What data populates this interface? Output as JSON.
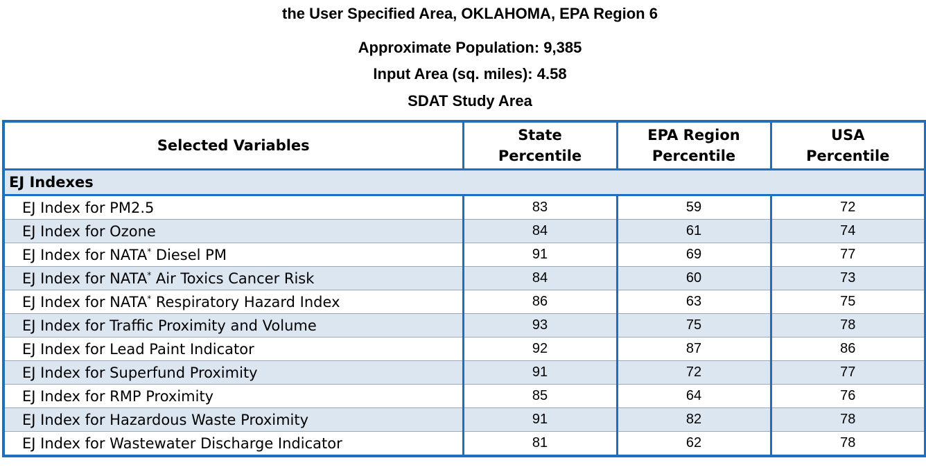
{
  "header": {
    "area_line": "the User Specified Area, OKLAHOMA, EPA Region 6",
    "population_line": "Approximate Population: 9,385",
    "input_area_line": "Input Area (sq. miles): 4.58",
    "study_area_line": "SDAT Study Area"
  },
  "table": {
    "columns": {
      "selected_variables": "Selected Variables",
      "state_line1": "State",
      "state_line2": "Percentile",
      "region_line1": "EPA Region",
      "region_line2": "Percentile",
      "usa_line1": "USA",
      "usa_line2": "Percentile"
    },
    "section_label": "EJ Indexes",
    "nata_superscript": "*",
    "rows": [
      {
        "prefix": "EJ Index for PM2.5",
        "suffix": "",
        "state": "83",
        "region": "59",
        "usa": "72"
      },
      {
        "prefix": "EJ Index for Ozone",
        "suffix": "",
        "state": "84",
        "region": "61",
        "usa": "74"
      },
      {
        "prefix": "EJ Index for NATA",
        "suffix": " Diesel PM",
        "state": "91",
        "region": "69",
        "usa": "77"
      },
      {
        "prefix": "EJ Index for NATA",
        "suffix": " Air Toxics Cancer Risk",
        "state": "84",
        "region": "60",
        "usa": "73"
      },
      {
        "prefix": "EJ Index for NATA",
        "suffix": " Respiratory Hazard Index",
        "state": "86",
        "region": "63",
        "usa": "75"
      },
      {
        "prefix": "EJ Index for Traffic Proximity and Volume",
        "suffix": "",
        "state": "93",
        "region": "75",
        "usa": "78"
      },
      {
        "prefix": "EJ Index for Lead Paint Indicator",
        "suffix": "",
        "state": "92",
        "region": "87",
        "usa": "86"
      },
      {
        "prefix": "EJ Index for Superfund Proximity",
        "suffix": "",
        "state": "91",
        "region": "72",
        "usa": "77"
      },
      {
        "prefix": "EJ Index for RMP Proximity",
        "suffix": "",
        "state": "85",
        "region": "64",
        "usa": "76"
      },
      {
        "prefix": "EJ Index for Hazardous Waste Proximity",
        "suffix": "",
        "state": "91",
        "region": "82",
        "usa": "78"
      },
      {
        "prefix": "EJ Index for Wastewater Discharge Indicator",
        "suffix": "",
        "state": "81",
        "region": "62",
        "usa": "78"
      }
    ]
  }
}
